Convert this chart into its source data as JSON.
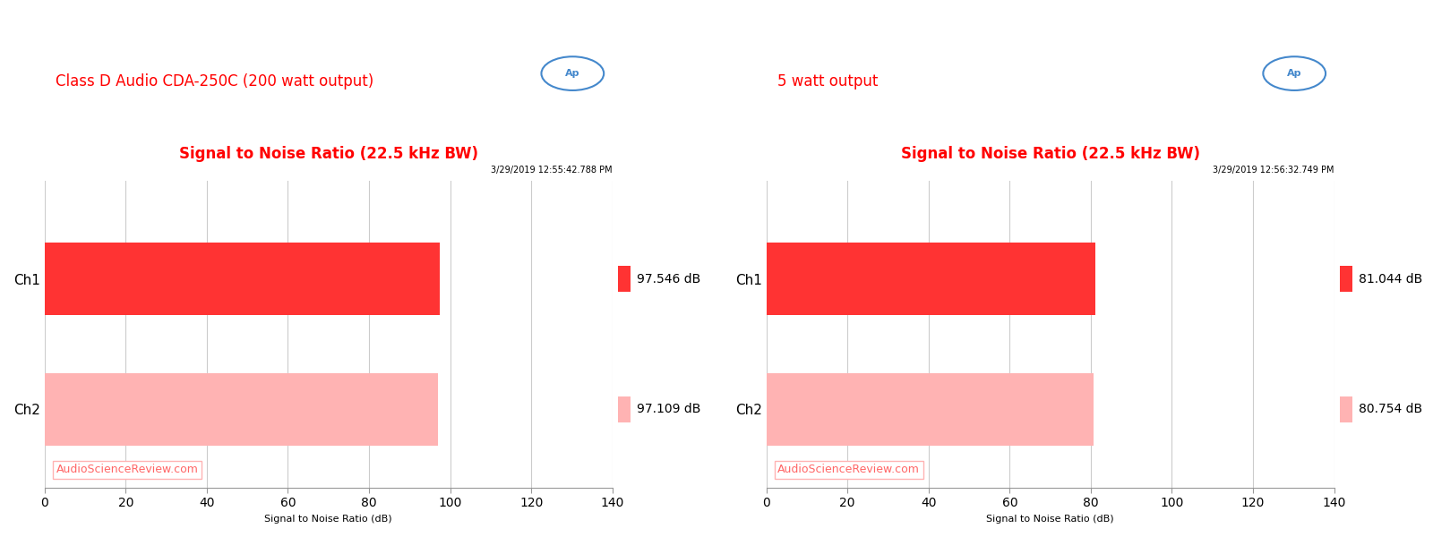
{
  "charts": [
    {
      "title": "Signal to Noise Ratio (22.5 kHz BW)",
      "timestamp": "3/29/2019 12:55:42.788 PM",
      "subtitle": "Class D Audio CDA-250C (200 watt output)",
      "channels": [
        "Ch1",
        "Ch2"
      ],
      "values": [
        97.546,
        97.109
      ],
      "colors": [
        "#FF3333",
        "#FFB3B3"
      ],
      "xlabel": "Signal to Noise Ratio (dB)",
      "xlim": [
        0,
        140
      ],
      "xticks": [
        0,
        20,
        40,
        60,
        80,
        100,
        120,
        140
      ],
      "value_labels": [
        "97.546 dB",
        "97.109 dB"
      ],
      "watermark": "AudioScienceReview.com"
    },
    {
      "title": "Signal to Noise Ratio (22.5 kHz BW)",
      "timestamp": "3/29/2019 12:56:32.749 PM",
      "subtitle": "5 watt output",
      "channels": [
        "Ch1",
        "Ch2"
      ],
      "values": [
        81.044,
        80.754
      ],
      "colors": [
        "#FF3333",
        "#FFB3B3"
      ],
      "xlabel": "Signal to Noise Ratio (dB)",
      "xlim": [
        0,
        140
      ],
      "xticks": [
        0,
        20,
        40,
        60,
        80,
        100,
        120,
        140
      ],
      "value_labels": [
        "81.044 dB",
        "80.754 dB"
      ],
      "watermark": "AudioScienceReview.com"
    }
  ],
  "bg_color": "#FFFFFF",
  "plot_bg_color": "#FFFFFF",
  "grid_color": "#CCCCCC",
  "title_color": "#FF0000",
  "subtitle_color": "#FF0000",
  "timestamp_color": "#000000",
  "watermark_color": "#FF6666",
  "label_color": "#000000",
  "ap_logo_color": "#4488CC"
}
